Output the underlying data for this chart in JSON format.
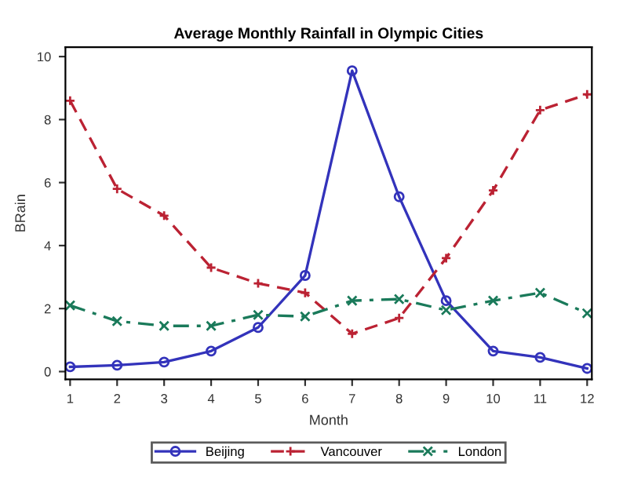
{
  "chart_data": {
    "type": "line",
    "title": "Average Monthly Rainfall in Olympic Cities",
    "xlabel": "Month",
    "ylabel": "BRain",
    "x": [
      1,
      2,
      3,
      4,
      5,
      6,
      7,
      8,
      9,
      10,
      11,
      12
    ],
    "series": [
      {
        "name": "Beijing",
        "color": "#3333bb",
        "marker": "circle",
        "line_style": "solid",
        "values": [
          0.15,
          0.2,
          0.3,
          0.65,
          1.4,
          3.05,
          9.55,
          5.55,
          2.25,
          0.65,
          0.45,
          0.1
        ]
      },
      {
        "name": "Vancouver",
        "color": "#bb2233",
        "marker": "plus",
        "line_style": "dashed",
        "values": [
          8.6,
          5.8,
          4.95,
          3.3,
          2.8,
          2.5,
          1.2,
          1.7,
          3.6,
          5.75,
          8.3,
          8.8
        ]
      },
      {
        "name": "London",
        "color": "#1a7a5a",
        "marker": "cross",
        "line_style": "dashdot",
        "values": [
          2.1,
          1.6,
          1.45,
          1.45,
          1.8,
          1.75,
          2.25,
          2.3,
          1.95,
          2.25,
          2.5,
          1.85
        ]
      }
    ],
    "xlim": [
      0.9,
      12.1
    ],
    "ylim": [
      -0.25,
      10.3
    ],
    "xticks": [
      1,
      2,
      3,
      4,
      5,
      6,
      7,
      8,
      9,
      10,
      11,
      12
    ],
    "yticks": [
      0,
      2,
      4,
      6,
      8,
      10
    ],
    "grid": false,
    "legend": "bottom"
  }
}
